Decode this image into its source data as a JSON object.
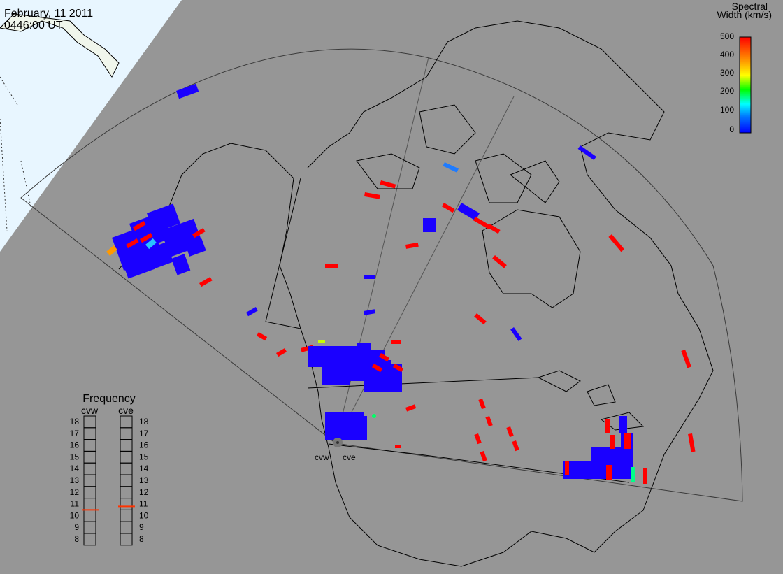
{
  "title": {
    "date": "February, 11 2011",
    "time": "0446:00 UT"
  },
  "colorbar": {
    "title_line1": "Spectral",
    "title_line2": "Width (km/s)",
    "ticks": [
      "500",
      "400",
      "300",
      "200",
      "100",
      "0"
    ],
    "range": [
      0,
      500
    ],
    "colors": [
      "#0000ff",
      "#0077ff",
      "#00ffff",
      "#00ff00",
      "#ffff00",
      "#ff9900",
      "#ff0000"
    ]
  },
  "radars": {
    "west": "cvw",
    "east": "cve"
  },
  "frequency_panel": {
    "title": "Frequency",
    "labels": [
      "18",
      "17",
      "16",
      "15",
      "14",
      "13",
      "12",
      "11",
      "10",
      "9",
      "8"
    ],
    "cvw_mhz": 10.5,
    "cve_mhz": 10.8,
    "marker_color": "#ff3300"
  },
  "colors": {
    "ocean": "#969696",
    "arctic_ocean_margin": "#e8f6ff",
    "land_outline": "#000000",
    "fov_outline": "#3a3a3a",
    "echo_low": "#1a00ff",
    "echo_high": "#ff0000"
  }
}
